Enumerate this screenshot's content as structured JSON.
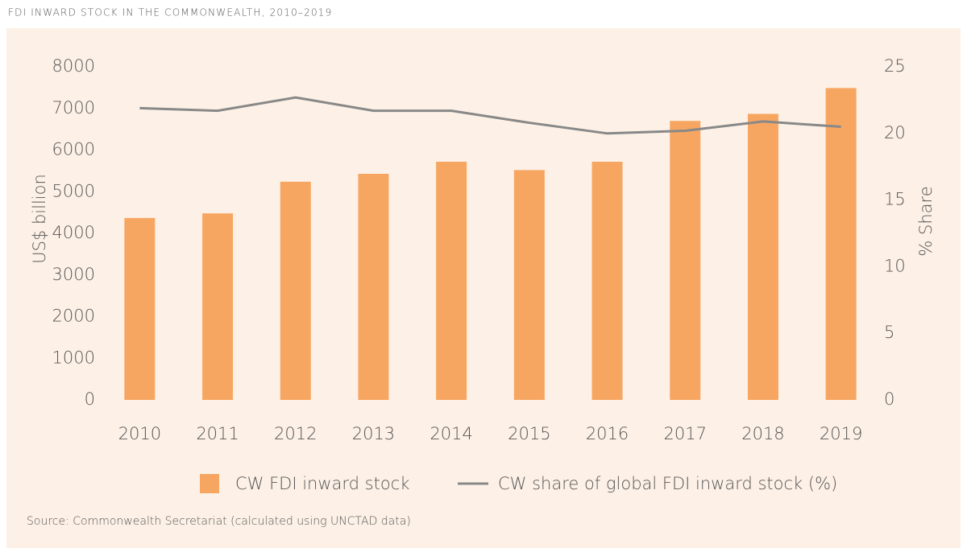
{
  "chart_data": {
    "type": "bar_line",
    "title": "FDI INWARD STOCK IN THE COMMONWEALTH, 2010–2019",
    "categories": [
      "2010",
      "2011",
      "2012",
      "2013",
      "2014",
      "2015",
      "2016",
      "2017",
      "2018",
      "2019"
    ],
    "series": [
      {
        "name": "CW FDI inward stock",
        "type": "bar",
        "color": "#f7a662",
        "values": [
          4370,
          4480,
          5240,
          5430,
          5720,
          5520,
          5720,
          6700,
          6870,
          7490
        ]
      },
      {
        "name": "CW share of global FDI inward stock (%)",
        "type": "line",
        "axis": "y2",
        "color": "#888888",
        "values": [
          21.9,
          21.7,
          22.7,
          21.7,
          21.7,
          20.8,
          20.0,
          20.2,
          20.9,
          20.5
        ]
      }
    ],
    "ylabel": "US$ billion",
    "y2label": "% Share",
    "ylim": [
      0,
      8000
    ],
    "yticks": [
      0,
      1000,
      2000,
      3000,
      4000,
      5000,
      6000,
      7000,
      8000
    ],
    "y2lim": [
      0,
      25
    ],
    "y2ticks": [
      0,
      5,
      10,
      15,
      20,
      25
    ],
    "grid": false,
    "legend": "bottom",
    "source": "Source: Commonwealth Secretariat (calculated using UNCTAD data)"
  }
}
